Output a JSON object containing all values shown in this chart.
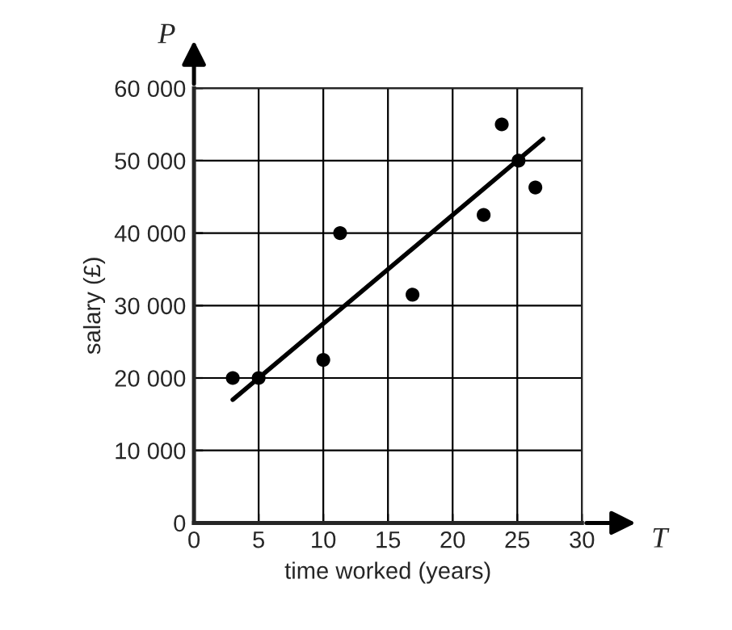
{
  "chart_data": {
    "type": "scatter",
    "xlabel": "time worked (years)",
    "ylabel": "salary (£)",
    "annotations": [
      "P",
      "T"
    ],
    "series": [
      {
        "marker": "circle",
        "color": "#000000",
        "x": [
          3,
          5,
          10,
          11.3,
          16.9,
          22.4,
          23.8,
          25.1,
          26.4
        ],
        "values": [
          20000,
          20000,
          22500,
          40000,
          31500,
          42500,
          55000,
          50000,
          46300
        ]
      },
      {
        "type": "line",
        "marker": "none",
        "color": "#000000",
        "x": [
          3,
          27
        ],
        "values": [
          17000,
          53000
        ]
      }
    ],
    "xlim": [
      0,
      30
    ],
    "ylim": [
      0,
      60000
    ],
    "xticks": [
      0,
      5,
      10,
      15,
      20,
      25,
      30
    ],
    "yticks": [
      {
        "value": 0,
        "label": "0"
      },
      {
        "value": 10000,
        "label": "10 000"
      },
      {
        "value": 20000,
        "label": "20 000"
      },
      {
        "value": 30000,
        "label": "30 000"
      },
      {
        "value": 40000,
        "label": "40 000"
      },
      {
        "value": 50000,
        "label": "50 000"
      },
      {
        "value": 60000,
        "label": "60 000"
      }
    ],
    "grid": true,
    "legend": false
  }
}
